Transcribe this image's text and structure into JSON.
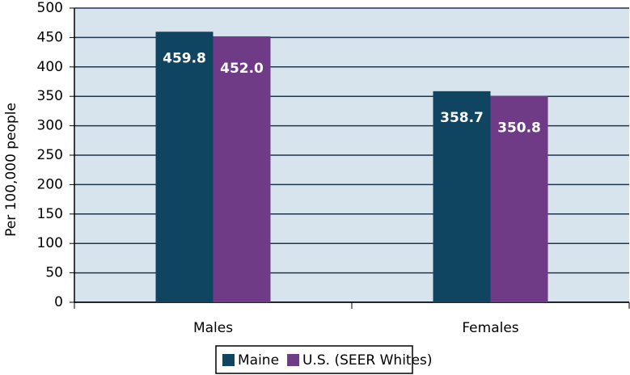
{
  "chart_data": {
    "type": "bar",
    "y_axis_label": "Per 100,000 people",
    "categories": [
      "Males",
      "Females"
    ],
    "series": [
      {
        "name": "Maine",
        "color": "#0f4560",
        "values": [
          459.8,
          358.7
        ],
        "value_labels": [
          "459.8",
          "358.7"
        ]
      },
      {
        "name": "U.S. (SEER Whites)",
        "color": "#6f3a86",
        "values": [
          452.0,
          350.8
        ],
        "value_labels": [
          "452.0",
          "350.8"
        ]
      }
    ],
    "ylim": [
      0,
      500
    ],
    "yticks": [
      0,
      50,
      100,
      150,
      200,
      250,
      300,
      350,
      400,
      450,
      500
    ],
    "grid": true,
    "legend": "bottom"
  }
}
